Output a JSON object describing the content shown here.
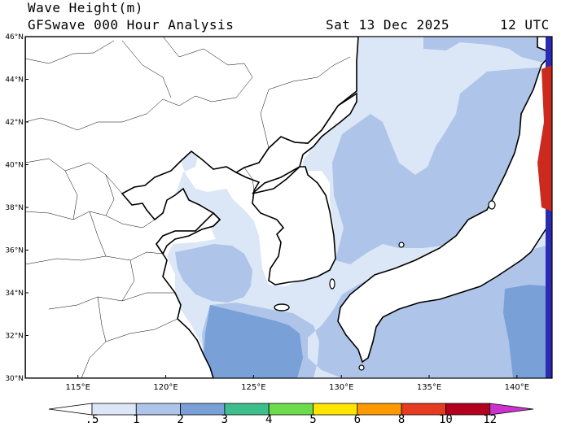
{
  "header": {
    "title": "Wave Height(m)",
    "model_line": "GFSwave 000 Hour Analysis",
    "date": "Sat 13 Dec 2025",
    "time": "12 UTC"
  },
  "map": {
    "lon_range": [
      112,
      142
    ],
    "lat_range": [
      30,
      46
    ],
    "lat_labels": [
      "30°N",
      "32°N",
      "34°N",
      "36°N",
      "38°N",
      "40°N",
      "42°N",
      "44°N",
      "46°N"
    ],
    "lon_labels": [
      "115°E",
      "120°E",
      "125°E",
      "130°E",
      "135°E",
      "140°E"
    ]
  },
  "legend": {
    "labels": [
      ".5",
      "1",
      "2",
      "3",
      "4",
      "5",
      "6",
      "8",
      "10",
      "12"
    ],
    "colors": [
      "#ffffff",
      "#dbe7f6",
      "#aec5e9",
      "#7aa0d8",
      "#3cbf8c",
      "#6ddc4c",
      "#ffe500",
      "#ff9900",
      "#e53b1e",
      "#b3001e",
      "#cc33cc"
    ]
  }
}
